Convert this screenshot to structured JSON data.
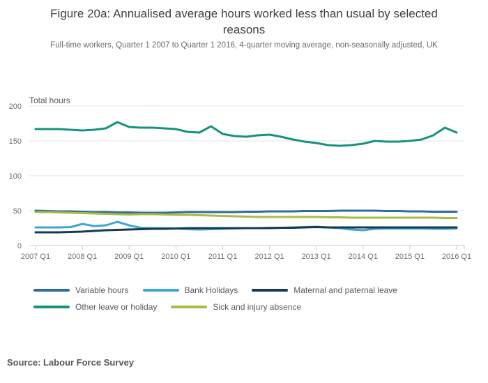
{
  "header": {
    "title": "Figure 20a: Annualised average hours worked less than usual by selected reasons",
    "subtitle": "Full-time workers, Quarter 1 2007 to Quarter 1 2016, 4-quarter moving average, non-seasonally adjusted, UK"
  },
  "source": "Source: Labour Force Survey",
  "colors": {
    "grid": "#e4e4e4",
    "axis": "#bfd1da",
    "tick_text": "#6d6d6d",
    "axis_title_text": "#595959"
  },
  "chart_data": {
    "type": "line",
    "title": "Figure 20a: Annualised average hours worked less than usual by selected reasons",
    "ylabel": "Total hours",
    "xlabel": "",
    "ylim": [
      0,
      200
    ],
    "yticks": [
      0,
      50,
      100,
      150,
      200
    ],
    "grid": "horizontal",
    "legend_position": "bottom",
    "x_tick_labels": [
      "2007 Q1",
      "2008 Q1",
      "2009 Q1",
      "2010 Q1",
      "2011 Q1",
      "2012 Q1",
      "2013 Q1",
      "2014 Q1",
      "2015 Q1",
      "2016 Q1"
    ],
    "x": [
      "2007 Q1",
      "2007 Q2",
      "2007 Q3",
      "2007 Q4",
      "2008 Q1",
      "2008 Q2",
      "2008 Q3",
      "2008 Q4",
      "2009 Q1",
      "2009 Q2",
      "2009 Q3",
      "2009 Q4",
      "2010 Q1",
      "2010 Q2",
      "2010 Q3",
      "2010 Q4",
      "2011 Q1",
      "2011 Q2",
      "2011 Q3",
      "2011 Q4",
      "2012 Q1",
      "2012 Q2",
      "2012 Q3",
      "2012 Q4",
      "2013 Q1",
      "2013 Q2",
      "2013 Q3",
      "2013 Q4",
      "2014 Q1",
      "2014 Q2",
      "2014 Q3",
      "2014 Q4",
      "2015 Q1",
      "2015 Q2",
      "2015 Q3",
      "2015 Q4",
      "2016 Q1"
    ],
    "series": [
      {
        "name": "Variable hours",
        "color": "#2f6c9a",
        "values": [
          50,
          49.5,
          49,
          49,
          48.5,
          48,
          48,
          47.5,
          47.5,
          47,
          47,
          47,
          47.5,
          48,
          48,
          48,
          48,
          48,
          48.5,
          48.5,
          49,
          49,
          49,
          49.5,
          49.5,
          49.5,
          50,
          50,
          50,
          50,
          49.5,
          49.5,
          49,
          49,
          48.5,
          48.5,
          48.5
        ]
      },
      {
        "name": "Bank Holidays",
        "color": "#3fa6d2",
        "values": [
          26,
          26,
          26,
          26.5,
          31,
          28,
          29,
          34,
          29,
          25.5,
          25,
          25,
          24.5,
          23.5,
          23,
          23.5,
          24,
          24.5,
          25,
          25,
          25.5,
          25.5,
          26,
          26.5,
          27,
          26,
          25,
          23,
          22,
          24,
          24.5,
          24.5,
          24.5,
          24.5,
          24,
          24,
          24.5
        ]
      },
      {
        "name": "Maternal and paternal leave",
        "color": "#153a52",
        "values": [
          19,
          19,
          19,
          19.5,
          20,
          21,
          22,
          22.5,
          23,
          23.5,
          24,
          24,
          24.5,
          25,
          25,
          25,
          25,
          25,
          25,
          25,
          25,
          25.5,
          25.5,
          26,
          26.5,
          26,
          26,
          26,
          26,
          26,
          26,
          26,
          26,
          26,
          26,
          26,
          26
        ]
      },
      {
        "name": "Other leave or holiday",
        "color": "#17927f",
        "values": [
          167,
          167,
          167,
          166,
          165,
          166,
          168,
          177,
          170,
          169,
          169,
          168,
          167,
          163,
          162,
          171,
          160,
          157,
          156,
          158,
          159,
          156,
          152,
          149,
          147,
          144,
          143,
          144,
          146,
          150,
          149,
          149,
          150,
          152,
          158,
          169,
          162
        ]
      },
      {
        "name": "Sick and injury absence",
        "color": "#a9bc3f",
        "values": [
          48,
          48,
          47.5,
          47,
          46.5,
          46,
          45.5,
          45,
          44.5,
          45,
          45,
          44.5,
          44,
          44,
          43.5,
          43,
          42.5,
          42,
          41.5,
          41,
          41,
          41,
          41,
          41,
          41,
          40.5,
          40.5,
          40,
          40,
          40,
          40,
          40,
          40,
          40,
          40,
          39.5,
          39.5
        ]
      }
    ]
  }
}
